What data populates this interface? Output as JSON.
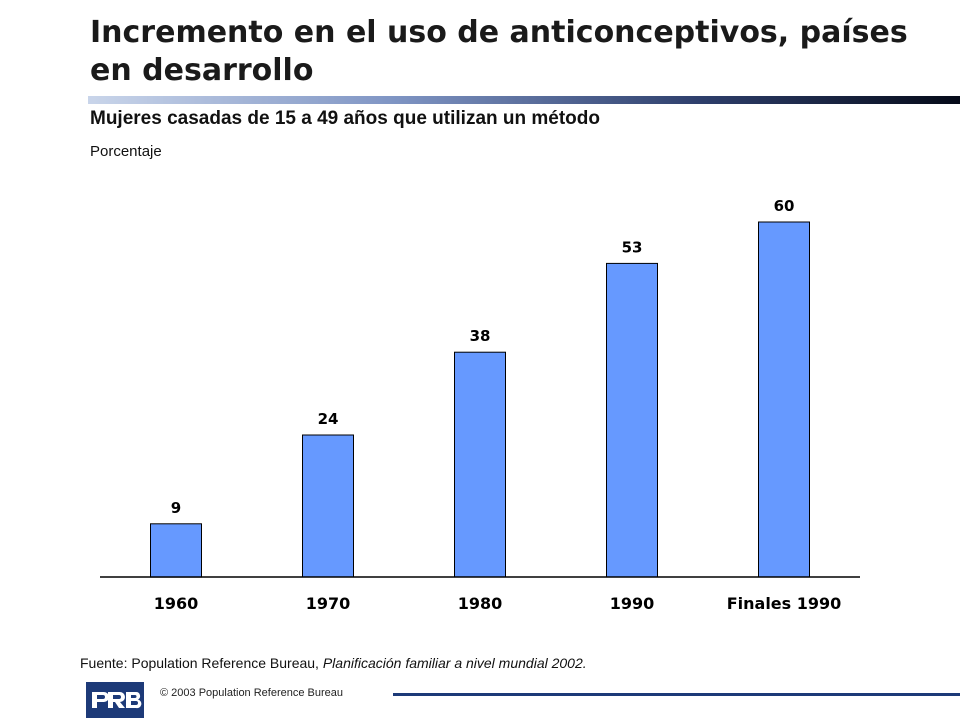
{
  "title": "Incremento en el uso de anticonceptivos, países en desarrollo",
  "chart_data": {
    "type": "bar",
    "title": "Mujeres casadas de 15 a 49 años que utilizan un método",
    "ylabel": "Porcentaje",
    "xlabel": "",
    "categories": [
      "1960",
      "1970",
      "1980",
      "1990",
      "Finales 1990"
    ],
    "values": [
      9,
      24,
      38,
      53,
      60
    ],
    "data_labels": [
      "9",
      "24",
      "38",
      "53",
      "60"
    ],
    "ylim": [
      0,
      60
    ],
    "bar_color": "#6699ff",
    "grid": false,
    "legend": "none"
  },
  "source": {
    "prefix": "Fuente: Population Reference Bureau, ",
    "title": "Planificación familiar a nivel mundial 2002."
  },
  "footer": {
    "logo_text": "PRB",
    "copyright": "© 2003 Population Reference Bureau",
    "brand_color": "#1d3a78"
  }
}
